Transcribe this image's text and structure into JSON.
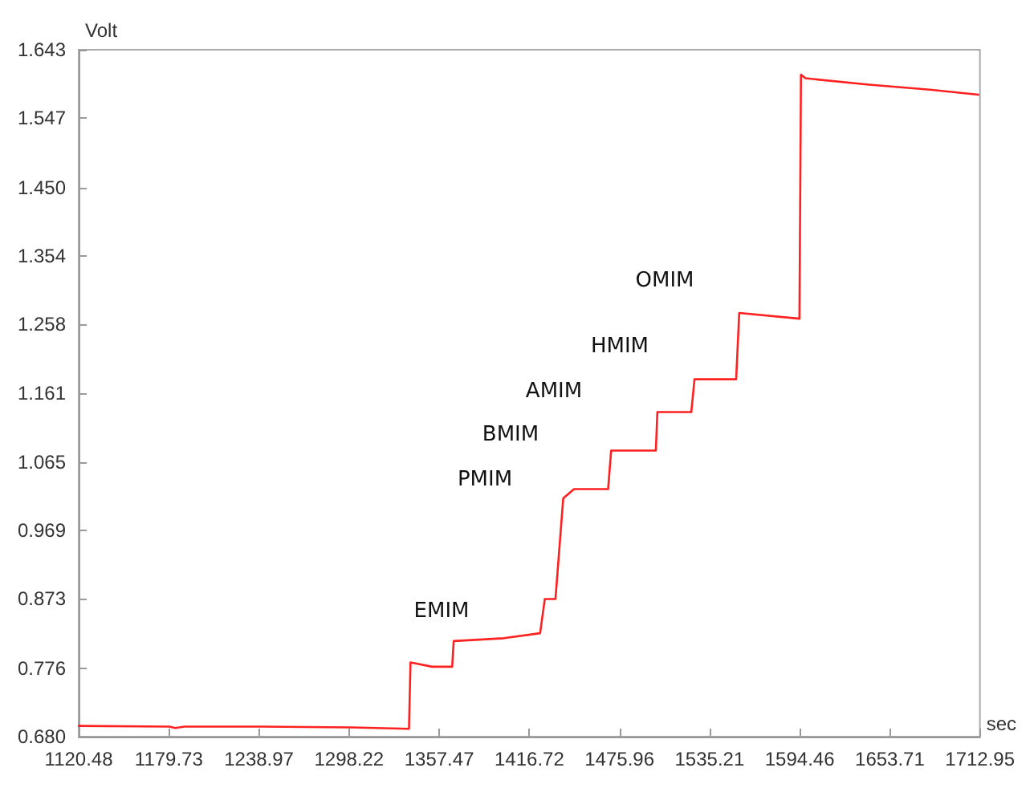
{
  "chart_data": {
    "type": "line",
    "xlabel": "sec",
    "ylabel": "Volt",
    "x": [
      1120.5,
      1180,
      1184,
      1190,
      1240,
      1300,
      1337.6,
      1338.6,
      1352.8,
      1366,
      1367,
      1400,
      1423.8,
      1426.9,
      1433.9,
      1439,
      1446.1,
      1468.5,
      1470.5,
      1499.9,
      1500.9,
      1523.2,
      1525.3,
      1552.7,
      1554.7,
      1594.3,
      1595.3,
      1598.3,
      1640,
      1680,
      1711.9
    ],
    "series": [
      {
        "color": "#ff2020",
        "values": [
          0.695,
          0.694,
          0.692,
          0.694,
          0.694,
          0.693,
          0.691,
          0.784,
          0.778,
          0.778,
          0.814,
          0.818,
          0.825,
          0.873,
          0.873,
          1.014,
          1.027,
          1.027,
          1.081,
          1.081,
          1.135,
          1.135,
          1.181,
          1.181,
          1.274,
          1.266,
          1.608,
          1.603,
          1.594,
          1.587,
          1.58
        ]
      }
    ],
    "xlim": [
      1120.48,
      1712.95
    ],
    "xticks": [
      1120.48,
      1179.73,
      1238.97,
      1298.22,
      1357.47,
      1416.72,
      1475.96,
      1535.21,
      1594.46,
      1653.71,
      1712.95
    ],
    "ylim": [
      0.68,
      1.643
    ],
    "yticks": [
      {
        "value": 0.68,
        "label": "0.680"
      },
      0.776,
      0.873,
      0.969,
      1.065,
      1.161,
      1.258,
      1.354,
      {
        "value": 1.45,
        "label": "1.450"
      },
      1.547,
      1.643
    ],
    "grid": false,
    "marker": "none",
    "line_style": "solid",
    "annotations": [
      "EMIM",
      "PMIM",
      "BMIM",
      "AMIM",
      "HMIM",
      "OMIM"
    ]
  }
}
